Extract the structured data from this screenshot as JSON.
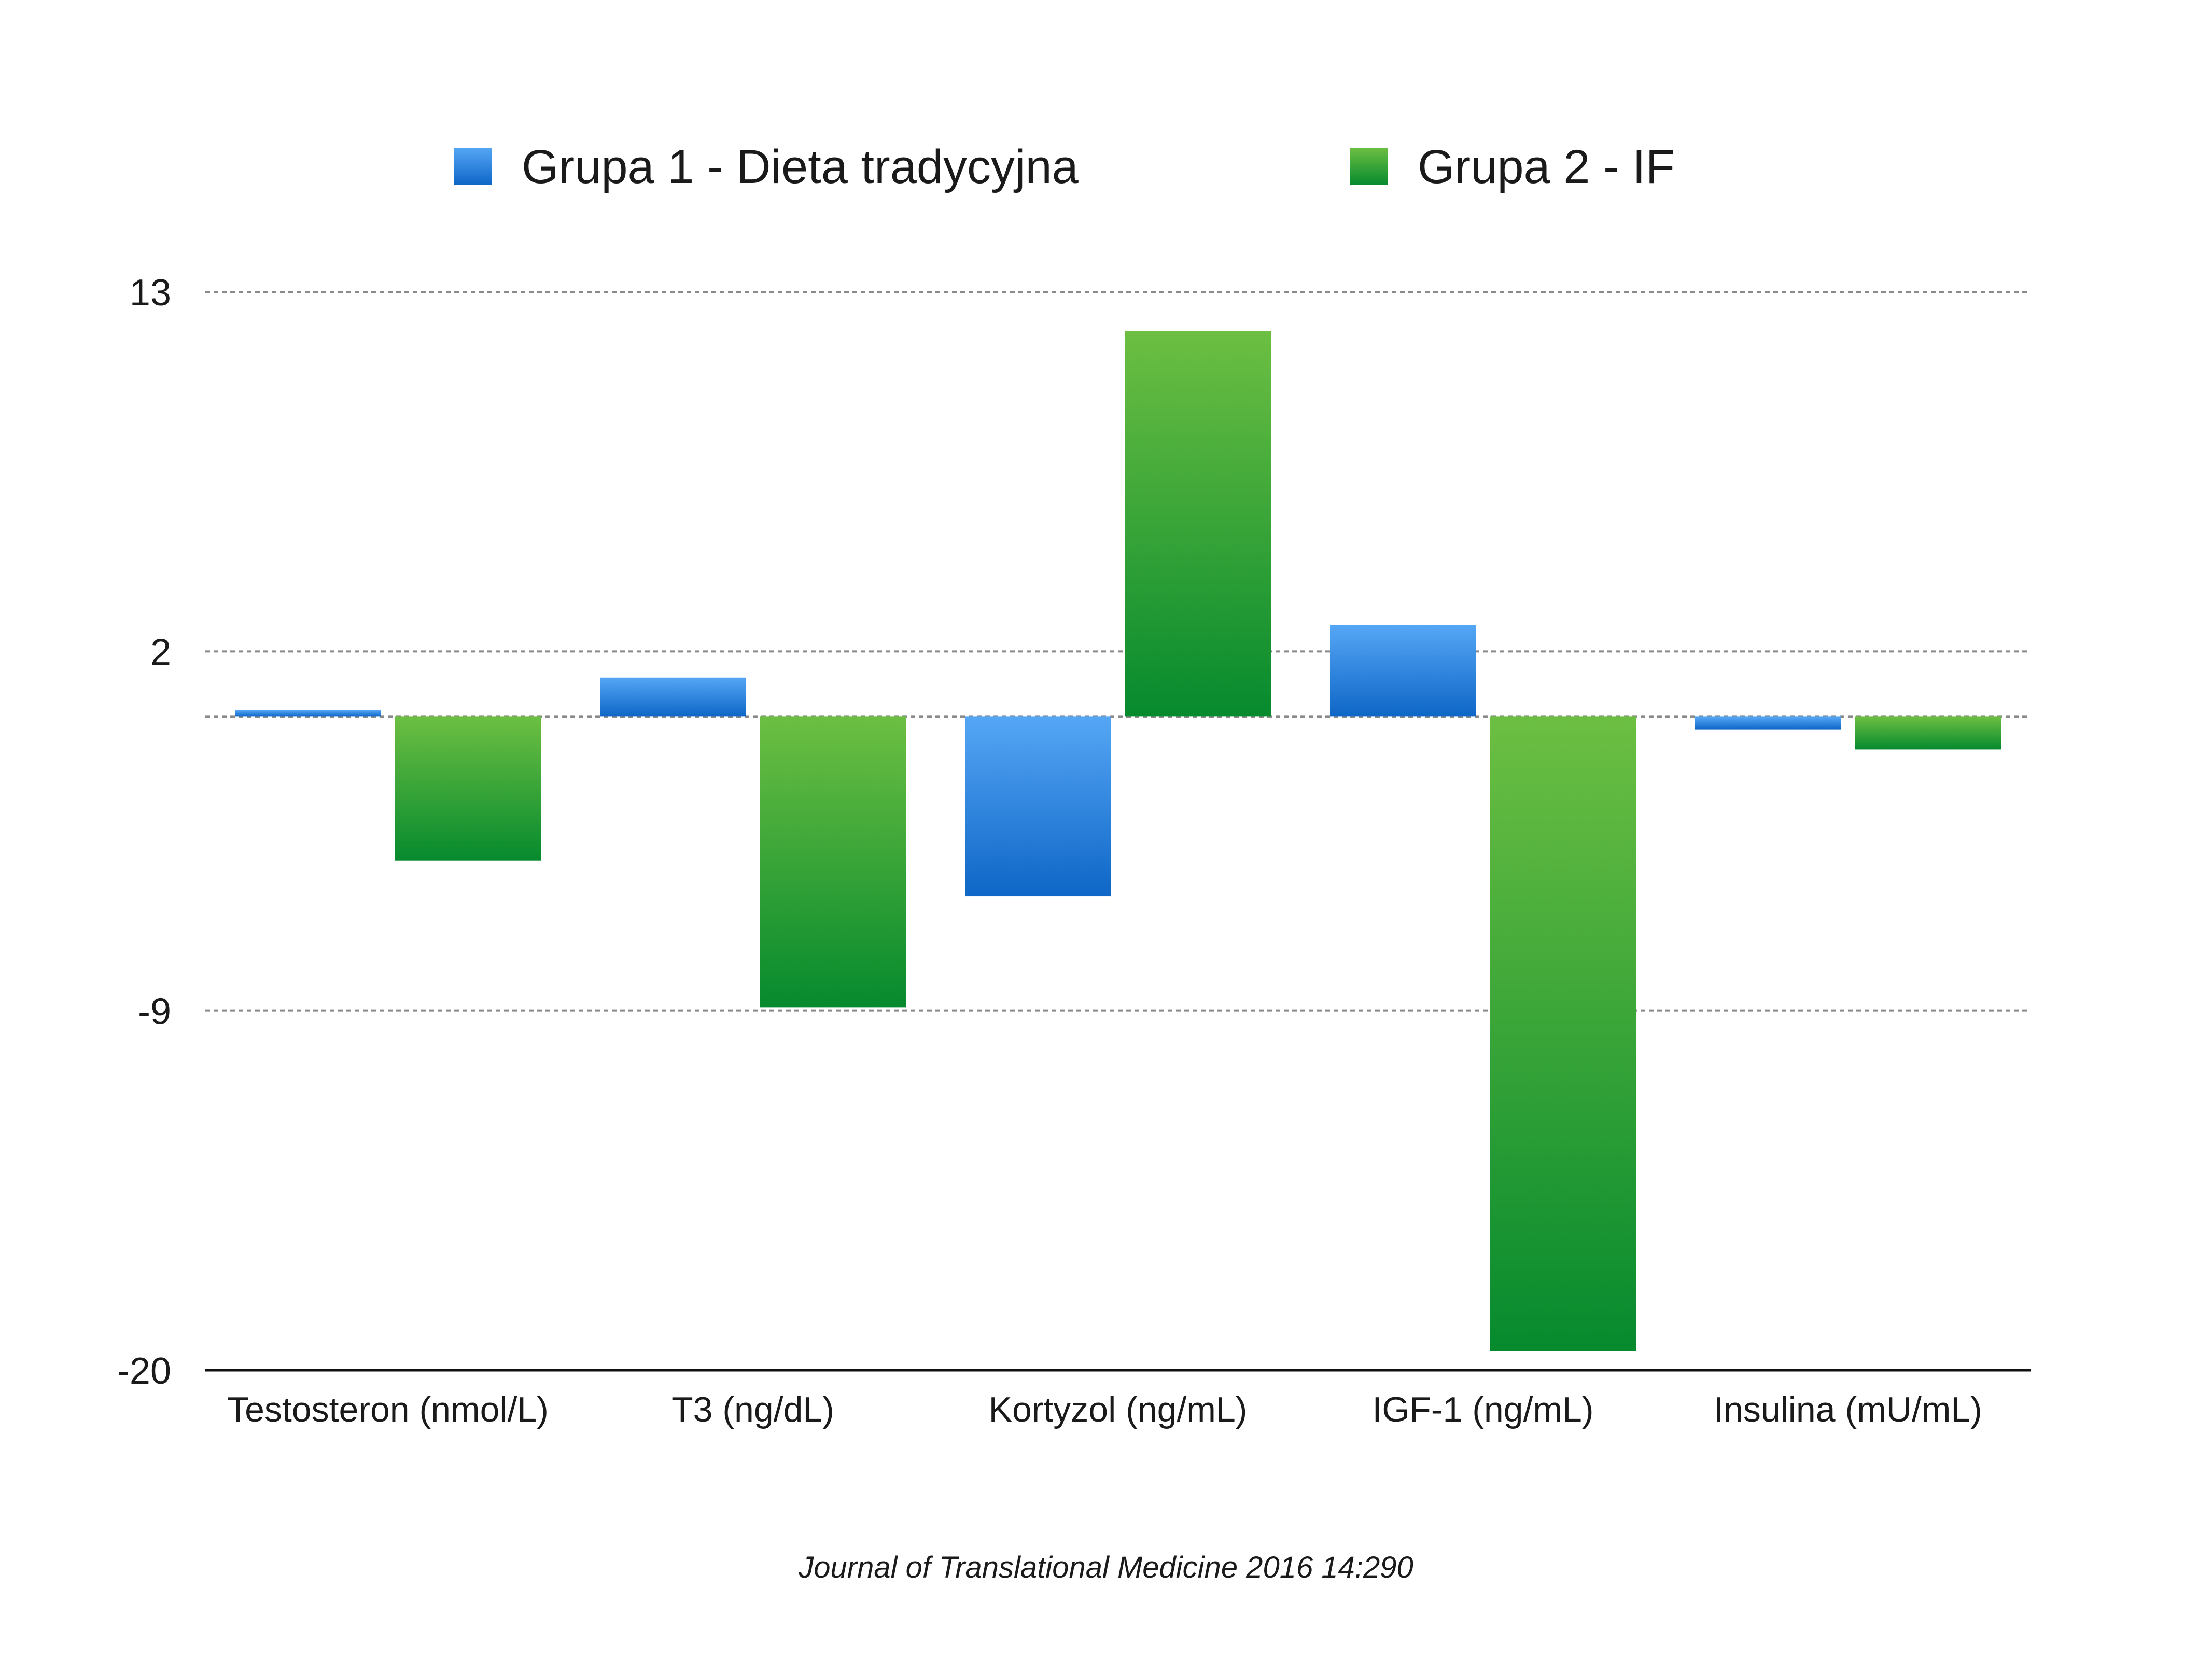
{
  "chart_data": {
    "type": "bar",
    "categories": [
      "Testosteron (nmol/L)",
      "T3 (ng/dL)",
      "Kortyzol (ng/mL)",
      "IGF-1 (ng/mL)",
      "Insulina (mU/mL)"
    ],
    "series": [
      {
        "name": "Grupa 1 - Dieta tradycyjna",
        "values": [
          0.2,
          1.2,
          -5.5,
          2.8,
          -0.4
        ],
        "color": "#3a8fe0"
      },
      {
        "name": "Grupa 2 - IF",
        "values": [
          -4.4,
          -8.9,
          11.8,
          -19.4,
          -1.0
        ],
        "color": "#3aa63a"
      }
    ],
    "yticks": [
      13,
      2,
      -9,
      -20
    ],
    "ylim": [
      -20,
      13
    ],
    "grid": true,
    "legend": "top-center"
  },
  "source": "Journal of Translational Medicine 2016 14:290"
}
